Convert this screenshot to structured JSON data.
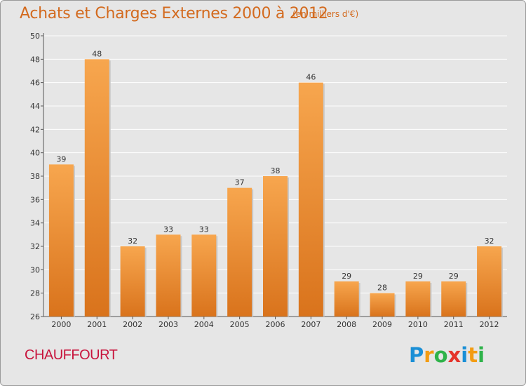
{
  "title": "Achats et Charges Externes 2000 à 2012",
  "unit_note": "(en milliers d'€)",
  "commune": "CHAUFFOURT",
  "logo": {
    "letters": [
      "P",
      "r",
      "o",
      "x",
      "i",
      "t",
      "i"
    ],
    "colors": [
      "#1a8fd6",
      "#f39c12",
      "#2fb34a",
      "#e5332a",
      "#1a8fd6",
      "#f39c12",
      "#2fb34a"
    ]
  },
  "colors": {
    "bar_top": "#f7a64e",
    "bar_bottom": "#d9731c",
    "title": "#d36a1e",
    "commune": "#c8143c",
    "grid": "#ffffff",
    "plot_bg": "#e6e6e6"
  },
  "chart_data": {
    "type": "bar",
    "title": "Achats et Charges Externes 2000 à 2012",
    "subtitle": "(en milliers d'€)",
    "xlabel": "",
    "ylabel": "",
    "ylim": [
      26,
      50
    ],
    "ytick_step": 2,
    "grid": true,
    "categories": [
      "2000",
      "2001",
      "2002",
      "2003",
      "2004",
      "2005",
      "2006",
      "2007",
      "2008",
      "2009",
      "2010",
      "2011",
      "2012"
    ],
    "values": [
      39,
      48,
      32,
      33,
      33,
      37,
      38,
      46,
      29,
      28,
      29,
      29,
      32
    ]
  }
}
